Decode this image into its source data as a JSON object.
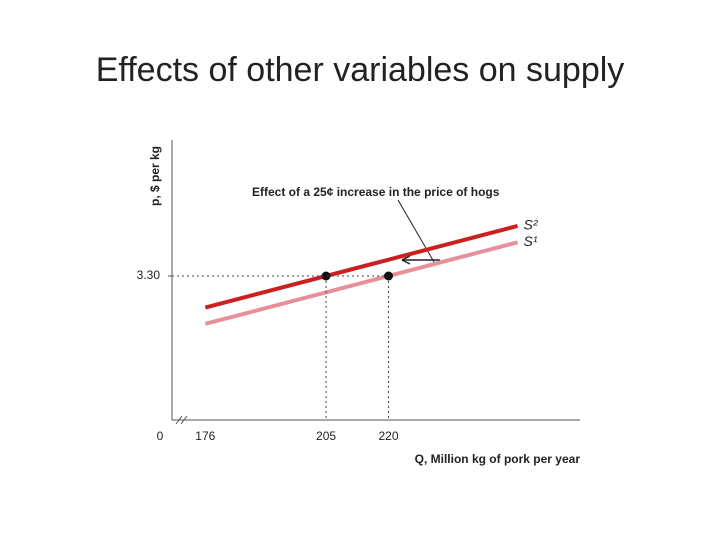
{
  "title": "Effects of other variables on supply",
  "chart_data": {
    "type": "line",
    "annotation": "Effect of a 25¢ increase in the price of hogs",
    "x_label": "Q, Million kg of pork per year",
    "y_label": "p, $ per kg",
    "origin_label": "0",
    "xlim": [
      168,
      266
    ],
    "ylim": [
      1.05,
      5.425
    ],
    "xticks": [
      176,
      205,
      220
    ],
    "yticks": [
      {
        "value": 3.3,
        "label": "3.30"
      }
    ],
    "series": [
      {
        "name": "S²",
        "color": "#cc1f1f",
        "x": [
          176,
          251
        ],
        "values": [
          2.807,
          4.082
        ]
      },
      {
        "name": "S¹",
        "color": "#e8909a",
        "x": [
          176,
          251
        ],
        "values": [
          2.552,
          3.827
        ]
      }
    ],
    "points": {
      "x": [
        205,
        220
      ],
      "values": [
        3.3,
        3.3
      ]
    }
  }
}
